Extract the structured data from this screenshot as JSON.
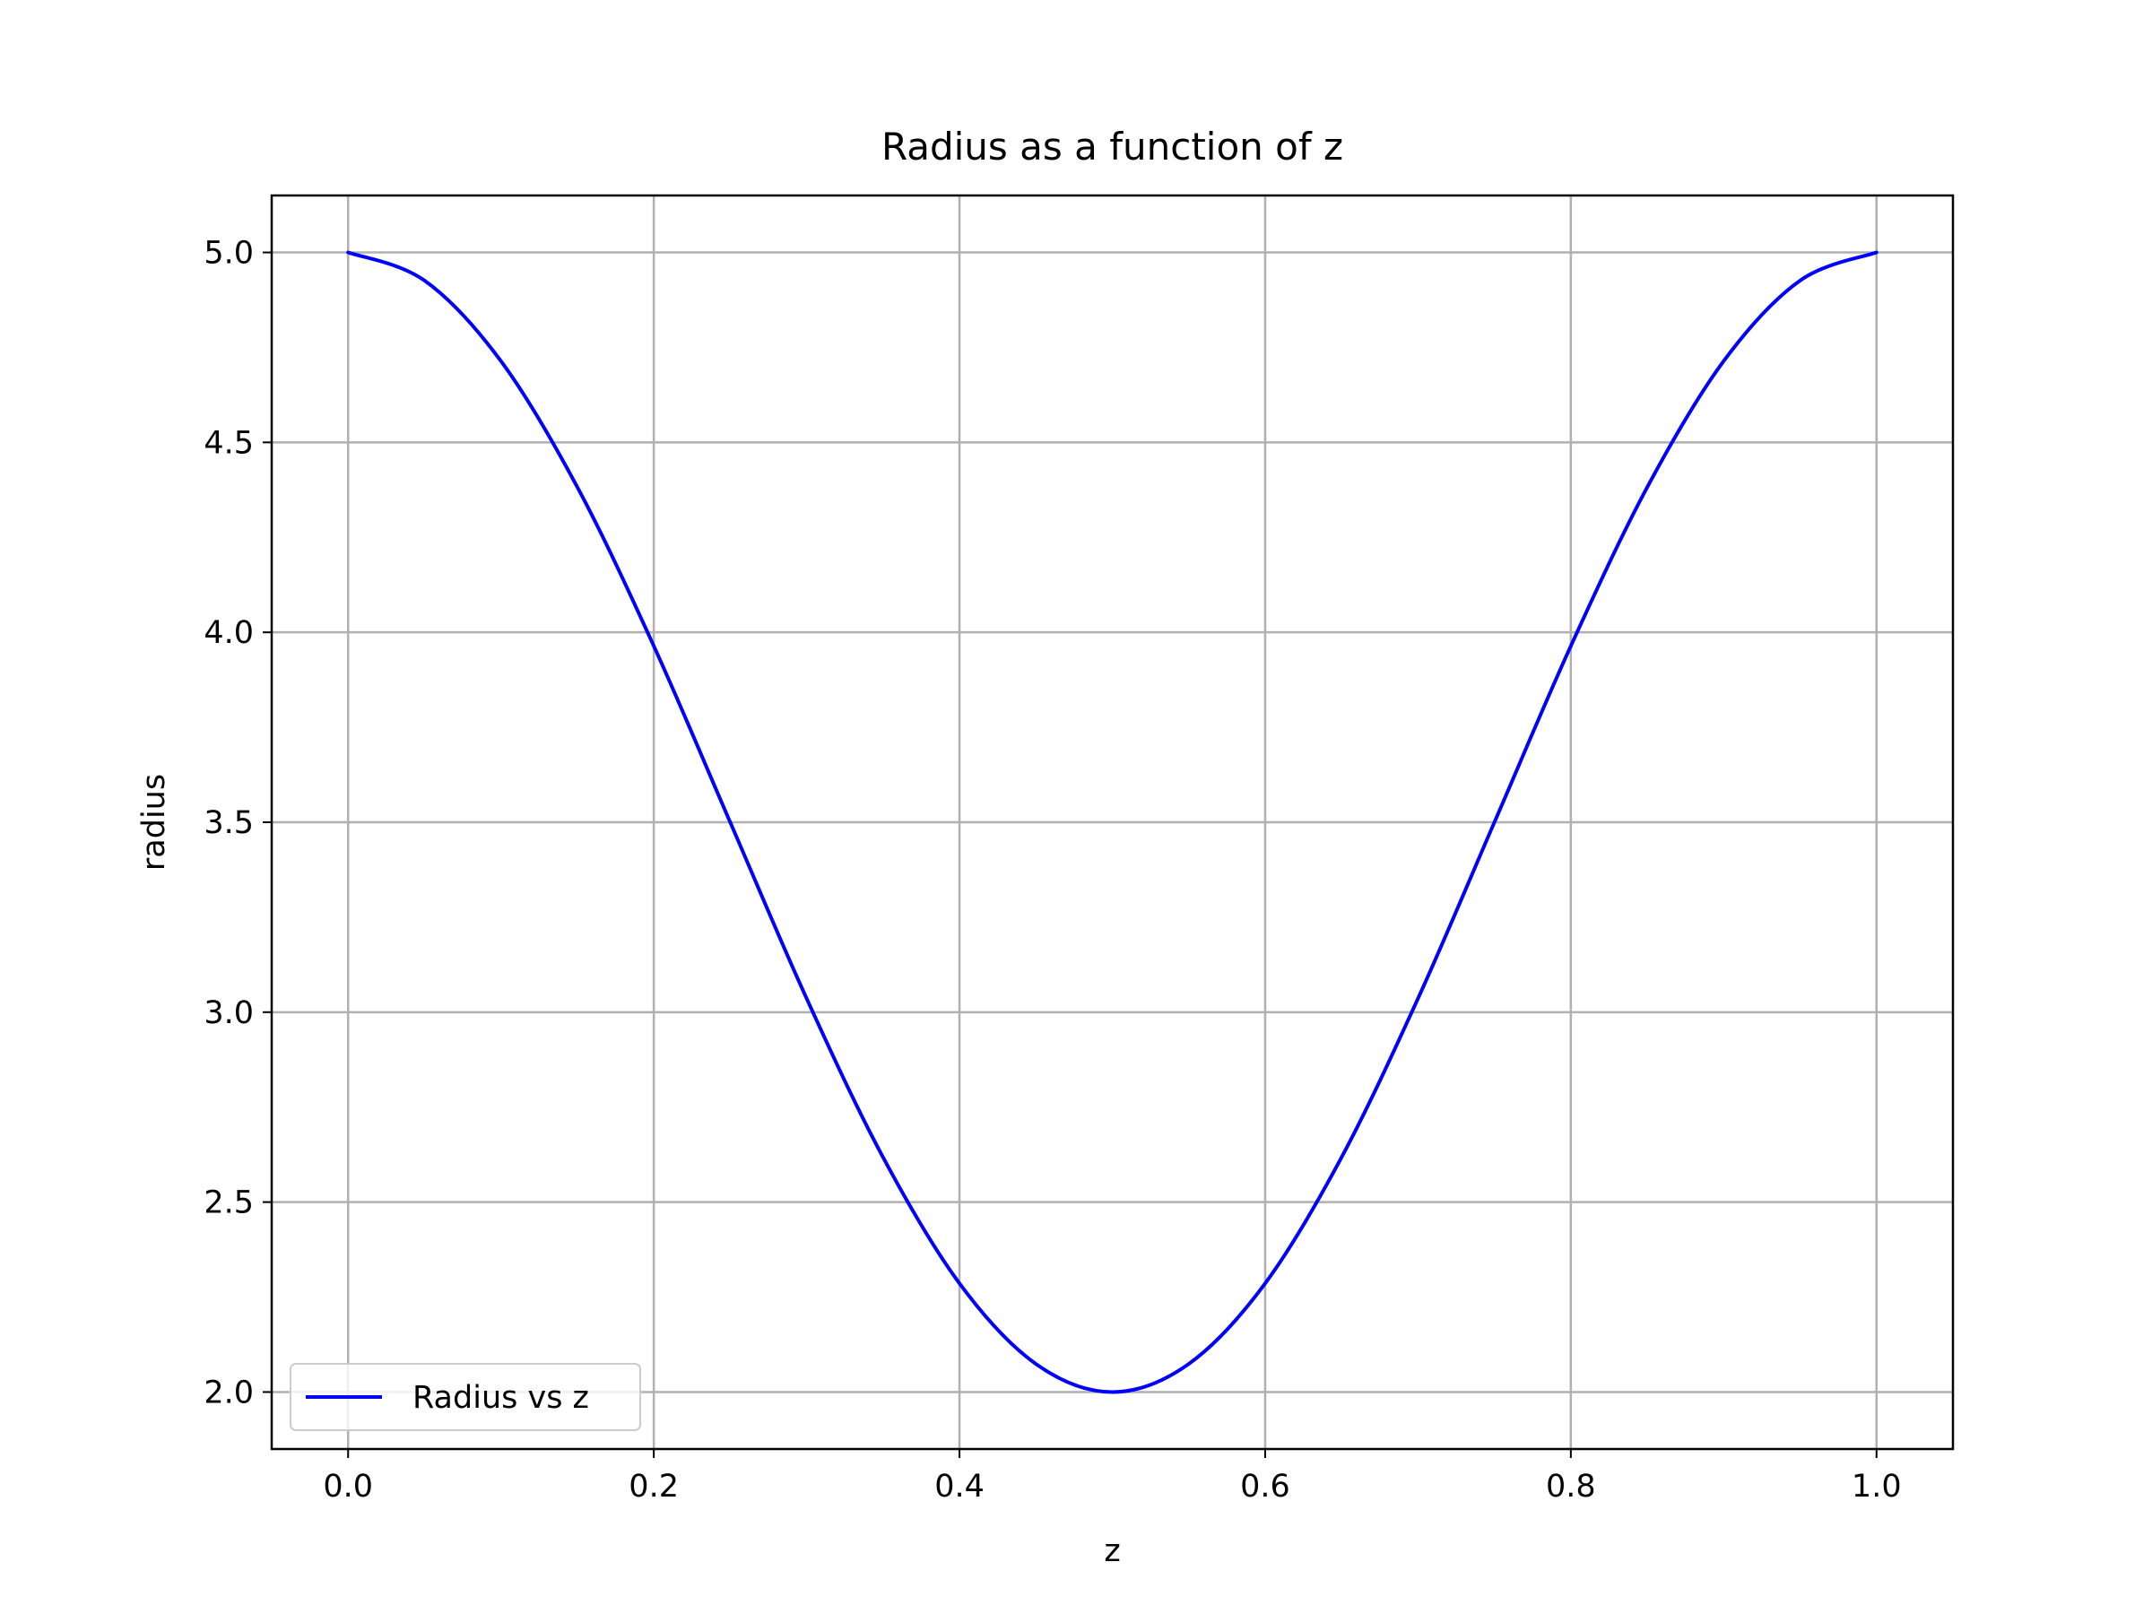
{
  "chart_data": {
    "type": "line",
    "title": "Radius as a function of z",
    "xlabel": "z",
    "ylabel": "radius",
    "xlim": [
      -0.05,
      1.05
    ],
    "ylim": [
      1.85,
      5.15
    ],
    "xticks": [
      0.0,
      0.2,
      0.4,
      0.6,
      0.8,
      1.0
    ],
    "xtick_labels": [
      "0.0",
      "0.2",
      "0.4",
      "0.6",
      "0.8",
      "1.0"
    ],
    "yticks": [
      2.0,
      2.5,
      3.0,
      3.5,
      4.0,
      4.5,
      5.0
    ],
    "ytick_labels": [
      "2.0",
      "2.5",
      "3.0",
      "3.5",
      "4.0",
      "4.5",
      "5.0"
    ],
    "grid": true,
    "legend_position": "lower-left",
    "series": [
      {
        "name": "Radius vs z",
        "color": "#0000ff",
        "x": [
          0.0,
          0.05,
          0.1,
          0.15,
          0.2,
          0.25,
          0.3,
          0.35,
          0.4,
          0.45,
          0.5,
          0.55,
          0.6,
          0.65,
          0.7,
          0.75,
          0.8,
          0.85,
          0.9,
          0.95,
          1.0
        ],
        "y": [
          5.0,
          4.926,
          4.714,
          4.382,
          3.964,
          3.5,
          3.036,
          2.618,
          2.286,
          2.074,
          2.0,
          2.074,
          2.286,
          2.618,
          3.036,
          3.5,
          3.964,
          4.382,
          4.714,
          4.926,
          5.0
        ]
      }
    ]
  }
}
